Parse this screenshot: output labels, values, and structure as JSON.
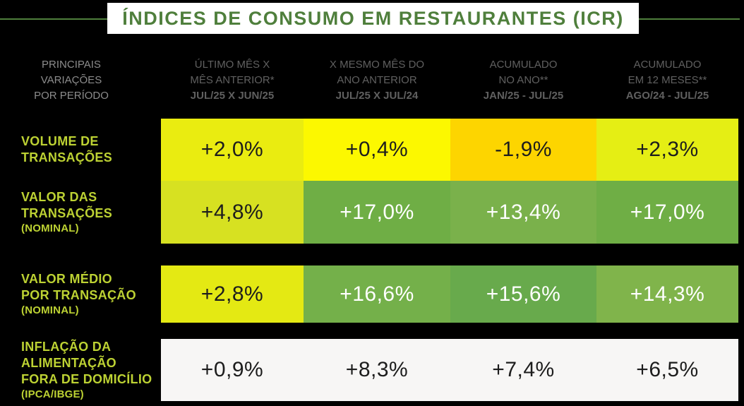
{
  "page_bg": "#000000",
  "title": {
    "text": "ÍNDICES DE CONSUMO EM RESTAURANTES (ICR)",
    "color": "#4f7f3c",
    "box_bg": "#ffffff",
    "line_color": "#4f7f3c"
  },
  "header": {
    "corner": "PRINCIPAIS\nVARIAÇÕES\nPOR PERÍODO",
    "corner_color": "#8c8c8c",
    "text_color": "#606060",
    "columns": [
      {
        "top": "ÚLTIMO MÊS X\nMÊS ANTERIOR*",
        "bottom": "JUL/25 X JUN/25"
      },
      {
        "top": "X MESMO MÊS DO\nANO ANTERIOR",
        "bottom": "JUL/25 X JUL/24"
      },
      {
        "top": "ACUMULADO\nNO ANO**",
        "bottom": "JAN/25 - JUL/25"
      },
      {
        "top": "ACUMULADO\nEM 12 MESES**",
        "bottom": "AGO/24 - JUL/25"
      }
    ]
  },
  "label_color": "#bdd233",
  "rows": [
    {
      "label": "VOLUME DE\nTRANSAÇÕES",
      "sublabel": "",
      "cells": [
        {
          "value": "+2,0%",
          "bg": "#eaec10",
          "fg": "#1d1d1d"
        },
        {
          "value": "+0,4%",
          "bg": "#fcf800",
          "fg": "#1d1d1d"
        },
        {
          "value": "-1,9%",
          "bg": "#fdd500",
          "fg": "#1d1d1d"
        },
        {
          "value": "+2,3%",
          "bg": "#e5ee14",
          "fg": "#1d1d1d"
        }
      ]
    },
    {
      "label": "VALOR DAS\nTRANSAÇÕES",
      "sublabel": "(NOMINAL)",
      "cells": [
        {
          "value": "+4,8%",
          "bg": "#d7e121",
          "fg": "#1d1d1d"
        },
        {
          "value": "+17,0%",
          "bg": "#6fae45",
          "fg": "#ffffff"
        },
        {
          "value": "+13,4%",
          "bg": "#7ab14b",
          "fg": "#ffffff"
        },
        {
          "value": "+17,0%",
          "bg": "#6fae45",
          "fg": "#ffffff"
        }
      ]
    },
    {
      "label": "VALOR MÉDIO\nPOR TRANSAÇÃO",
      "sublabel": "(NOMINAL)",
      "cells": [
        {
          "value": "+2,8%",
          "bg": "#e4e913",
          "fg": "#1d1d1d"
        },
        {
          "value": "+16,6%",
          "bg": "#74b04a",
          "fg": "#ffffff"
        },
        {
          "value": "+15,6%",
          "bg": "#68aa4c",
          "fg": "#ffffff"
        },
        {
          "value": "+14,3%",
          "bg": "#80b44b",
          "fg": "#ffffff"
        }
      ]
    },
    {
      "label": "INFLAÇÃO DA\nALIMENTAÇÃO\nFORA DE DOMICÍLIO",
      "sublabel": "(IPCA/IBGE)",
      "cells": [
        {
          "value": "+0,9%",
          "bg": "#f7f6f5",
          "fg": "#1d1d1d"
        },
        {
          "value": "+8,3%",
          "bg": "#f7f6f5",
          "fg": "#1d1d1d"
        },
        {
          "value": "+7,4%",
          "bg": "#f7f6f5",
          "fg": "#1d1d1d"
        },
        {
          "value": "+6,5%",
          "bg": "#f7f6f5",
          "fg": "#1d1d1d"
        }
      ]
    }
  ],
  "chart_data": {
    "type": "table",
    "title": "ÍNDICES DE CONSUMO EM RESTAURANTES (ICR)",
    "row_labels": [
      "VOLUME DE TRANSAÇÕES",
      "VALOR DAS TRANSAÇÕES (NOMINAL)",
      "VALOR MÉDIO POR TRANSAÇÃO (NOMINAL)",
      "INFLAÇÃO DA ALIMENTAÇÃO FORA DE DOMICÍLIO (IPCA/IBGE)"
    ],
    "column_labels": [
      "ÚLTIMO MÊS X MÊS ANTERIOR* JUL/25 X JUN/25",
      "X MESMO MÊS DO ANO ANTERIOR JUL/25 X JUL/24",
      "ACUMULADO NO ANO** JAN/25 - JUL/25",
      "ACUMULADO EM 12 MESES** AGO/24 - JUL/25"
    ],
    "values_percent": [
      [
        2.0,
        0.4,
        -1.9,
        2.3
      ],
      [
        4.8,
        17.0,
        13.4,
        17.0
      ],
      [
        2.8,
        16.6,
        15.6,
        14.3
      ],
      [
        0.9,
        8.3,
        7.4,
        6.5
      ]
    ]
  }
}
